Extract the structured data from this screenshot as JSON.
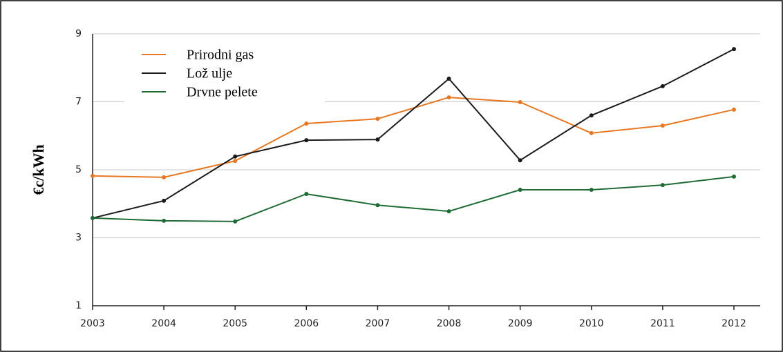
{
  "chart_data": {
    "type": "line",
    "y_label": "€c/kWh",
    "categories": [
      "2003",
      "2004",
      "2005",
      "2006",
      "2007",
      "2008",
      "2009",
      "2010",
      "2011",
      "2012"
    ],
    "series": [
      {
        "name": "Prirodni gas",
        "color": "#e87722",
        "values": [
          4.82,
          4.78,
          5.26,
          6.36,
          6.5,
          7.13,
          6.99,
          6.08,
          6.3,
          6.77
        ]
      },
      {
        "name": "Lož ulje",
        "color": "#1a1a1a",
        "values": [
          3.58,
          4.09,
          5.39,
          5.87,
          5.89,
          7.68,
          5.28,
          6.6,
          7.46,
          8.55
        ]
      },
      {
        "name": "Drvne pelete",
        "color": "#1e6b35",
        "values": [
          3.58,
          3.5,
          3.48,
          4.29,
          3.96,
          3.78,
          4.41,
          4.41,
          4.55,
          4.8
        ]
      }
    ],
    "ylim": [
      1,
      9
    ],
    "yticks": [
      1,
      3,
      5,
      7,
      9
    ],
    "grid": true,
    "legend": "upper left"
  }
}
